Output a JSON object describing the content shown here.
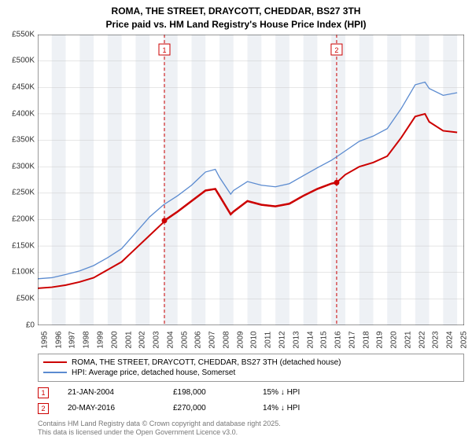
{
  "title_line1": "ROMA, THE STREET, DRAYCOTT, CHEDDAR, BS27 3TH",
  "title_line2": "Price paid vs. HM Land Registry's House Price Index (HPI)",
  "chart": {
    "type": "line",
    "background_color": "#ffffff",
    "alt_band_color": "#eef1f5",
    "grid_color": "#cccccc",
    "axis_color": "#333333",
    "ylim": [
      0,
      550000
    ],
    "ytick_step": 50000,
    "ytick_labels": [
      "£0",
      "£50K",
      "£100K",
      "£150K",
      "£200K",
      "£250K",
      "£300K",
      "£350K",
      "£400K",
      "£450K",
      "£500K",
      "£550K"
    ],
    "x_start": 1995,
    "x_end": 2025.5,
    "xtick_years": [
      1995,
      1996,
      1997,
      1998,
      1999,
      2000,
      2001,
      2002,
      2003,
      2004,
      2005,
      2006,
      2007,
      2008,
      2009,
      2010,
      2011,
      2012,
      2013,
      2014,
      2015,
      2016,
      2017,
      2018,
      2019,
      2020,
      2021,
      2022,
      2023,
      2024,
      2025
    ],
    "series": [
      {
        "name": "price_paid",
        "label": "ROMA, THE STREET, DRAYCOTT, CHEDDAR, BS27 3TH (detached house)",
        "color": "#cc0000",
        "width": 2,
        "points": [
          [
            1995,
            70000
          ],
          [
            1996,
            72000
          ],
          [
            1997,
            76000
          ],
          [
            1998,
            82000
          ],
          [
            1999,
            90000
          ],
          [
            2000,
            105000
          ],
          [
            2001,
            120000
          ],
          [
            2002,
            145000
          ],
          [
            2003,
            170000
          ],
          [
            2004,
            195000
          ],
          [
            2004.06,
            198000
          ],
          [
            2005,
            215000
          ],
          [
            2006,
            235000
          ],
          [
            2007,
            255000
          ],
          [
            2007.7,
            258000
          ],
          [
            2008,
            245000
          ],
          [
            2008.8,
            210000
          ],
          [
            2009,
            215000
          ],
          [
            2010,
            235000
          ],
          [
            2011,
            228000
          ],
          [
            2012,
            225000
          ],
          [
            2013,
            230000
          ],
          [
            2014,
            245000
          ],
          [
            2015,
            258000
          ],
          [
            2016,
            268000
          ],
          [
            2016.38,
            270000
          ],
          [
            2017,
            285000
          ],
          [
            2018,
            300000
          ],
          [
            2019,
            308000
          ],
          [
            2020,
            320000
          ],
          [
            2021,
            355000
          ],
          [
            2022,
            395000
          ],
          [
            2022.7,
            400000
          ],
          [
            2023,
            385000
          ],
          [
            2024,
            368000
          ],
          [
            2025,
            365000
          ]
        ]
      },
      {
        "name": "hpi",
        "label": "HPI: Average price, detached house, Somerset",
        "color": "#5b8bd0",
        "width": 1.3,
        "points": [
          [
            1995,
            88000
          ],
          [
            1996,
            90000
          ],
          [
            1997,
            96000
          ],
          [
            1998,
            103000
          ],
          [
            1999,
            113000
          ],
          [
            2000,
            128000
          ],
          [
            2001,
            145000
          ],
          [
            2002,
            175000
          ],
          [
            2003,
            205000
          ],
          [
            2004,
            228000
          ],
          [
            2005,
            245000
          ],
          [
            2006,
            265000
          ],
          [
            2007,
            290000
          ],
          [
            2007.7,
            295000
          ],
          [
            2008,
            280000
          ],
          [
            2008.8,
            248000
          ],
          [
            2009,
            255000
          ],
          [
            2010,
            272000
          ],
          [
            2011,
            265000
          ],
          [
            2012,
            262000
          ],
          [
            2013,
            268000
          ],
          [
            2014,
            283000
          ],
          [
            2015,
            298000
          ],
          [
            2016,
            312000
          ],
          [
            2017,
            330000
          ],
          [
            2018,
            348000
          ],
          [
            2019,
            358000
          ],
          [
            2020,
            372000
          ],
          [
            2021,
            410000
          ],
          [
            2022,
            455000
          ],
          [
            2022.7,
            460000
          ],
          [
            2023,
            448000
          ],
          [
            2024,
            435000
          ],
          [
            2025,
            440000
          ]
        ]
      }
    ],
    "markers": [
      {
        "num": "1",
        "x": 2004.06,
        "y": 198000,
        "color": "#cc0000"
      },
      {
        "num": "2",
        "x": 2016.38,
        "y": 270000,
        "color": "#cc0000"
      }
    ],
    "marker_vlines_color": "#cc0000",
    "marker_vlines_dash": "4,3"
  },
  "legend": {
    "items": [
      {
        "color": "#cc0000",
        "width": 2,
        "label": "ROMA, THE STREET, DRAYCOTT, CHEDDAR, BS27 3TH (detached house)"
      },
      {
        "color": "#5b8bd0",
        "width": 1.3,
        "label": "HPI: Average price, detached house, Somerset"
      }
    ]
  },
  "marker_rows": [
    {
      "num": "1",
      "date": "21-JAN-2004",
      "price": "£198,000",
      "delta": "15% ↓ HPI",
      "color": "#cc0000"
    },
    {
      "num": "2",
      "date": "20-MAY-2016",
      "price": "£270,000",
      "delta": "14% ↓ HPI",
      "color": "#cc0000"
    }
  ],
  "footnote_line1": "Contains HM Land Registry data © Crown copyright and database right 2025.",
  "footnote_line2": "This data is licensed under the Open Government Licence v3.0."
}
